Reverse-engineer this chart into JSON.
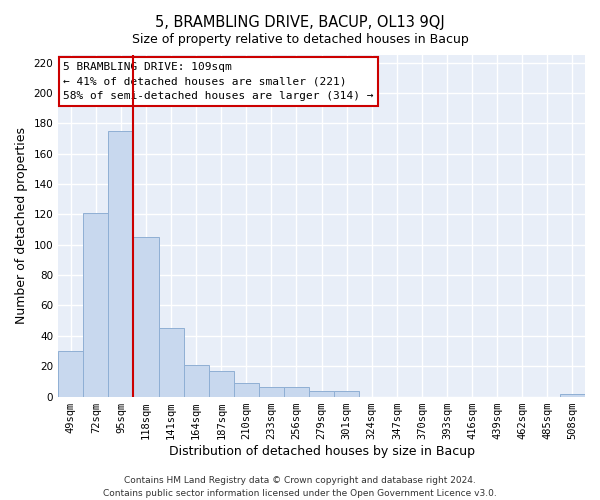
{
  "title": "5, BRAMBLING DRIVE, BACUP, OL13 9QJ",
  "subtitle": "Size of property relative to detached houses in Bacup",
  "xlabel": "Distribution of detached houses by size in Bacup",
  "ylabel": "Number of detached properties",
  "bar_labels": [
    "49sqm",
    "72sqm",
    "95sqm",
    "118sqm",
    "141sqm",
    "164sqm",
    "187sqm",
    "210sqm",
    "233sqm",
    "256sqm",
    "279sqm",
    "301sqm",
    "324sqm",
    "347sqm",
    "370sqm",
    "393sqm",
    "416sqm",
    "439sqm",
    "462sqm",
    "485sqm",
    "508sqm"
  ],
  "bar_values": [
    30,
    121,
    175,
    105,
    45,
    21,
    17,
    9,
    6,
    6,
    4,
    4,
    0,
    0,
    0,
    0,
    0,
    0,
    0,
    0,
    2
  ],
  "bar_color": "#c8d8ee",
  "bar_edgecolor": "#8fafd4",
  "vline_color": "#cc0000",
  "vline_pos": 2.5,
  "ylim": [
    0,
    225
  ],
  "yticks": [
    0,
    20,
    40,
    60,
    80,
    100,
    120,
    140,
    160,
    180,
    200,
    220
  ],
  "annotation_title": "5 BRAMBLING DRIVE: 109sqm",
  "annotation_line1": "← 41% of detached houses are smaller (221)",
  "annotation_line2": "58% of semi-detached houses are larger (314) →",
  "annotation_box_facecolor": "#ffffff",
  "annotation_box_edgecolor": "#cc0000",
  "footer_line1": "Contains HM Land Registry data © Crown copyright and database right 2024.",
  "footer_line2": "Contains public sector information licensed under the Open Government Licence v3.0.",
  "fig_facecolor": "#ffffff",
  "plot_facecolor": "#e8eef8",
  "grid_color": "#ffffff",
  "title_fontsize": 10.5,
  "axis_label_fontsize": 9,
  "tick_fontsize": 7.5,
  "annotation_fontsize": 8,
  "footer_fontsize": 6.5
}
